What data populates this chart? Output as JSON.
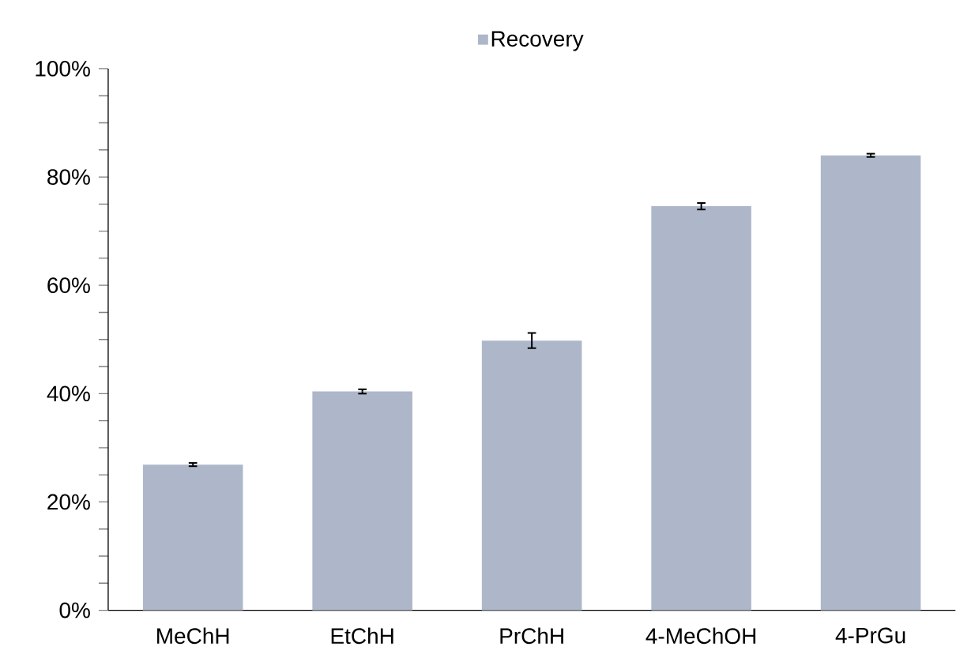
{
  "chart_data": {
    "type": "bar",
    "categories": [
      "MeChH",
      "EtChH",
      "PrChH",
      "4-MeChOH",
      "4-PrGu"
    ],
    "series": [
      {
        "name": "Recovery",
        "color": "#adb7c9",
        "values": [
          26.9,
          40.4,
          49.8,
          74.6,
          84.0
        ],
        "errors": [
          0.3,
          0.4,
          1.4,
          0.6,
          0.3
        ]
      }
    ],
    "ylim": [
      0,
      100
    ],
    "yticks": [
      {
        "value": 0,
        "label": "0%"
      },
      {
        "value": 5,
        "label": null
      },
      {
        "value": 10,
        "label": null
      },
      {
        "value": 15,
        "label": null
      },
      {
        "value": 20,
        "label": "20%"
      },
      {
        "value": 25,
        "label": null
      },
      {
        "value": 30,
        "label": null
      },
      {
        "value": 35,
        "label": null
      },
      {
        "value": 40,
        "label": "40%"
      },
      {
        "value": 45,
        "label": null
      },
      {
        "value": 50,
        "label": null
      },
      {
        "value": 55,
        "label": null
      },
      {
        "value": 60,
        "label": "60%"
      },
      {
        "value": 65,
        "label": null
      },
      {
        "value": 70,
        "label": null
      },
      {
        "value": 75,
        "label": null
      },
      {
        "value": 80,
        "label": "80%"
      },
      {
        "value": 85,
        "label": null
      },
      {
        "value": 90,
        "label": null
      },
      {
        "value": 95,
        "label": null
      },
      {
        "value": 100,
        "label": "100%"
      }
    ],
    "legend": "top",
    "grid": false
  }
}
